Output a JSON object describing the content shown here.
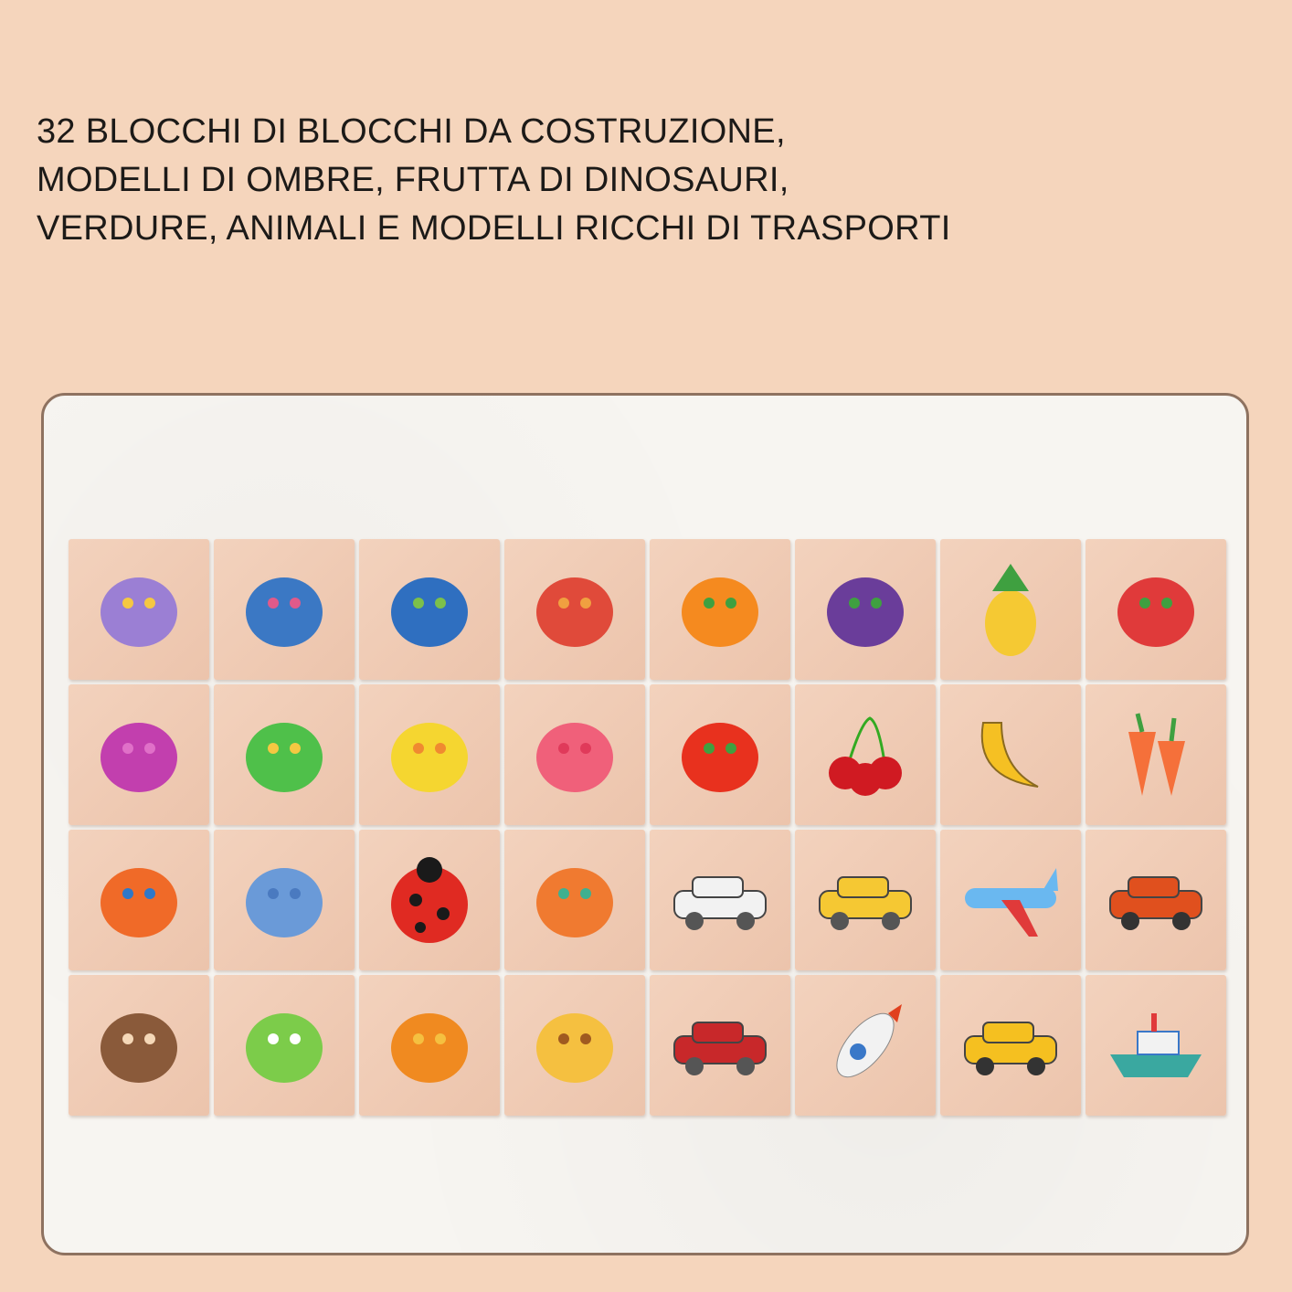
{
  "title": {
    "lines": [
      "32 BLOCCHI DI BLOCCHI DA COSTRUZIONE,",
      "MODELLI DI OMBRE, FRUTTA DI DINOSAURI,",
      "VERDURE, ANIMALI E MODELLI RICCHI DI TRASPORTI"
    ]
  },
  "tiles": [
    {
      "icon": "triceratops",
      "color": "#9b7fd4",
      "accent": "#f5c842"
    },
    {
      "icon": "blue-dinosaur",
      "color": "#3b78c4",
      "accent": "#e05a8a"
    },
    {
      "icon": "t-rex",
      "color": "#2f6fc0",
      "accent": "#7cc04a"
    },
    {
      "icon": "parasaurolophus",
      "color": "#e04a3a",
      "accent": "#f0a040"
    },
    {
      "icon": "orange",
      "color": "#f58a1f",
      "accent": "#3fa040"
    },
    {
      "icon": "grapes",
      "color": "#6a3d9a",
      "accent": "#3fa040"
    },
    {
      "icon": "pineapple",
      "color": "#f5c933",
      "accent": "#3fa040"
    },
    {
      "icon": "strawberry",
      "color": "#e03a3a",
      "accent": "#3fa040"
    },
    {
      "icon": "brontosaurus",
      "color": "#c23fae",
      "accent": "#e070c8"
    },
    {
      "icon": "pterodactyl",
      "color": "#4fc04a",
      "accent": "#f5c842"
    },
    {
      "icon": "yellow-dinosaur",
      "color": "#f5d630",
      "accent": "#f08a30"
    },
    {
      "icon": "pink-dinosaur",
      "color": "#f0607a",
      "accent": "#e03a5a"
    },
    {
      "icon": "tomato",
      "color": "#e8311e",
      "accent": "#3fa040"
    },
    {
      "icon": "cherries",
      "color": "#d01a22",
      "accent": "#3fa040"
    },
    {
      "icon": "banana",
      "color": "#f5c023",
      "accent": "#8a6a20"
    },
    {
      "icon": "carrot",
      "color": "#f5703a",
      "accent": "#3fa040"
    },
    {
      "icon": "owl",
      "color": "#f06a28",
      "accent": "#2f78c8"
    },
    {
      "icon": "elephant",
      "color": "#6a9ad8",
      "accent": "#4a7ac0"
    },
    {
      "icon": "ladybug",
      "color": "#e02a22",
      "accent": "#1a1a1a"
    },
    {
      "icon": "fox",
      "color": "#f07a30",
      "accent": "#3fb090"
    },
    {
      "icon": "suv",
      "color": "#f2f2f2",
      "accent": "#555555"
    },
    {
      "icon": "yellow-car",
      "color": "#f5c833",
      "accent": "#555555"
    },
    {
      "icon": "airplane",
      "color": "#6ab8f0",
      "accent": "#e03a3a"
    },
    {
      "icon": "sports-car",
      "color": "#e0501e",
      "accent": "#333333"
    },
    {
      "icon": "monkey",
      "color": "#8a5a3a",
      "accent": "#f5d8b8"
    },
    {
      "icon": "frog",
      "color": "#7ccc4a",
      "accent": "#ffffff"
    },
    {
      "icon": "lion",
      "color": "#f08a20",
      "accent": "#f5c040"
    },
    {
      "icon": "giraffe",
      "color": "#f5c040",
      "accent": "#a05a20"
    },
    {
      "icon": "pickup-truck",
      "color": "#c8282a",
      "accent": "#555555"
    },
    {
      "icon": "rocket",
      "color": "#f2f2f2",
      "accent": "#e0401e"
    },
    {
      "icon": "taxi",
      "color": "#f5c020",
      "accent": "#333333"
    },
    {
      "icon": "boat",
      "color": "#3aa8a0",
      "accent": "#e03a3a"
    }
  ],
  "colors": {
    "background": "#f5d5bc",
    "panel": "#f7f5f1",
    "panel_border": "#8e7260",
    "tile": "#efc9b2",
    "text": "#1c1a18"
  }
}
